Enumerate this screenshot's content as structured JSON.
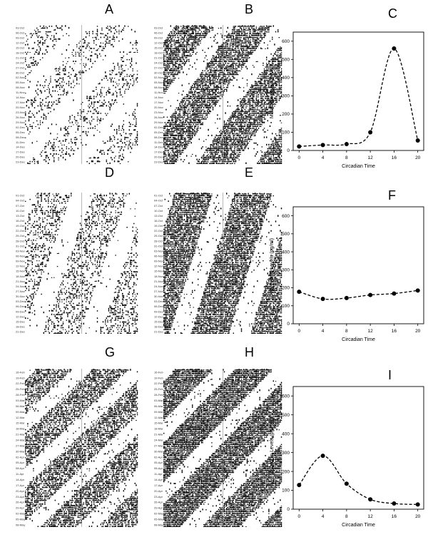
{
  "panel_letters": [
    "A",
    "B",
    "C",
    "D",
    "E",
    "F",
    "G",
    "H",
    "I"
  ],
  "actograms": [
    {
      "letter": "A",
      "density": 0.12,
      "slope": -1.0,
      "dates": [
        "03-Oct",
        "06-Oct",
        "09-Oct",
        "12-Oct",
        "15-Oct",
        "18-Oct",
        "21-Oct",
        "24-Oct",
        "27-Oct",
        "30-Oct",
        "02-Nov",
        "05-Nov",
        "08-Nov",
        "11-Nov",
        "14-Nov",
        "17-Nov",
        "20-Nov",
        "23-Nov",
        "26-Nov",
        "29-Nov",
        "02-Dec",
        "05-Dec",
        "08-Dec",
        "11-Dec",
        "14-Dec",
        "17-Dec",
        "20-Dec",
        "23-Dec"
      ]
    },
    {
      "letter": "B",
      "density": 0.42,
      "slope": -0.8,
      "dates": [
        "03-Oct",
        "06-Oct",
        "09-Oct",
        "12-Oct",
        "15-Oct",
        "18-Oct",
        "21-Oct",
        "24-Oct",
        "27-Oct",
        "30-Oct",
        "02-Nov",
        "05-Nov",
        "08-Nov",
        "11-Nov",
        "14-Nov",
        "17-Nov",
        "20-Nov",
        "23-Nov",
        "26-Nov",
        "29-Nov",
        "02-Dec",
        "05-Dec",
        "08-Dec",
        "11-Dec",
        "14-Dec",
        "17-Dec",
        "20-Dec",
        "23-Dec"
      ]
    },
    {
      "letter": "D",
      "density": 0.18,
      "slope": -0.4,
      "dates": [
        "01-Oct",
        "04-Oct",
        "07-Oct",
        "10-Oct",
        "13-Oct",
        "16-Oct",
        "19-Oct",
        "22-Oct",
        "25-Oct",
        "28-Oct",
        "31-Oct",
        "03-Nov",
        "06-Nov",
        "09-Nov",
        "12-Nov",
        "15-Nov",
        "18-Nov",
        "21-Nov",
        "24-Nov",
        "27-Nov",
        "30-Nov",
        "03-Dec",
        "06-Dec",
        "09-Dec",
        "12-Dec",
        "15-Dec",
        "18-Dec",
        "21-Dec"
      ]
    },
    {
      "letter": "E",
      "density": 0.45,
      "slope": -0.35,
      "dates": [
        "01-Oct",
        "04-Oct",
        "07-Oct",
        "10-Oct",
        "13-Oct",
        "16-Oct",
        "19-Oct",
        "22-Oct",
        "25-Oct",
        "28-Oct",
        "31-Oct",
        "03-Nov",
        "06-Nov",
        "09-Nov",
        "12-Nov",
        "15-Nov",
        "18-Nov",
        "21-Nov",
        "24-Nov",
        "27-Nov",
        "30-Nov",
        "03-Dec",
        "06-Dec",
        "09-Dec",
        "12-Dec",
        "15-Dec",
        "18-Dec",
        "21-Dec"
      ]
    },
    {
      "letter": "G",
      "density": 0.38,
      "slope": -1.2,
      "dates": [
        "16-Feb",
        "19-Feb",
        "22-Feb",
        "25-Feb",
        "28-Feb",
        "03-Mar",
        "06-Mar",
        "09-Mar",
        "12-Mar",
        "15-Mar",
        "18-Mar",
        "21-Mar",
        "24-Mar",
        "27-Mar",
        "30-Mar",
        "02-Apr",
        "05-Apr",
        "08-Apr",
        "11-Apr",
        "14-Apr",
        "17-Apr",
        "20-Apr",
        "23-Apr",
        "26-Apr",
        "29-Apr",
        "02-May",
        "05-May",
        "08-May"
      ]
    },
    {
      "letter": "H",
      "density": 0.5,
      "slope": -1.1,
      "dates": [
        "16-Feb",
        "19-Feb",
        "22-Feb",
        "25-Feb",
        "28-Feb",
        "03-Mar",
        "06-Mar",
        "09-Mar",
        "12-Mar",
        "15-Mar",
        "18-Mar",
        "21-Mar",
        "24-Mar",
        "27-Mar",
        "30-Mar",
        "02-Apr",
        "05-Apr",
        "08-Apr",
        "11-Apr",
        "14-Apr",
        "17-Apr",
        "20-Apr",
        "23-Apr",
        "26-Apr",
        "29-Apr",
        "02-May",
        "05-May",
        "08-May"
      ]
    }
  ],
  "chart_data": [
    {
      "type": "line",
      "panel": "C",
      "x": [
        0,
        4,
        8,
        12,
        16,
        20
      ],
      "series": [
        {
          "values": [
            22,
            30,
            35,
            100,
            560,
            55
          ]
        }
      ],
      "xlabel": "Circadian Time",
      "ylabel": "Melatonin Levels (pg/ml)",
      "xlim": [
        -1,
        21
      ],
      "ylim": [
        0,
        650
      ],
      "xticks": [
        0,
        4,
        8,
        12,
        16,
        20
      ],
      "yticks": [
        0,
        100,
        200,
        300,
        400,
        500,
        600
      ],
      "line_style": "dashed",
      "marker": "filled-circle",
      "grid": false
    },
    {
      "type": "line",
      "panel": "F",
      "x": [
        0,
        4,
        8,
        12,
        16,
        20
      ],
      "series": [
        {
          "values": [
            178,
            138,
            143,
            160,
            168,
            185
          ]
        }
      ],
      "xlabel": "Circadian Time",
      "ylabel": "Melatonin Levels (pg/ml)",
      "xlim": [
        -1,
        21
      ],
      "ylim": [
        0,
        650
      ],
      "xticks": [
        0,
        4,
        8,
        12,
        16,
        20
      ],
      "yticks": [
        0,
        100,
        200,
        300,
        400,
        500,
        600
      ],
      "line_style": "dashed",
      "marker": "filled-circle",
      "grid": false
    },
    {
      "type": "line",
      "panel": "I",
      "x": [
        0,
        4,
        8,
        12,
        16,
        20
      ],
      "series": [
        {
          "values": [
            128,
            283,
            135,
            52,
            30,
            25
          ]
        }
      ],
      "xlabel": "Circadian Time",
      "ylabel": "Melatonin Levels (pg/ml)",
      "xlim": [
        -1,
        21
      ],
      "ylim": [
        0,
        650
      ],
      "xticks": [
        0,
        4,
        8,
        12,
        16,
        20
      ],
      "yticks": [
        0,
        100,
        200,
        300,
        400,
        500,
        600
      ],
      "line_style": "dashed",
      "marker": "filled-circle",
      "grid": false
    }
  ]
}
